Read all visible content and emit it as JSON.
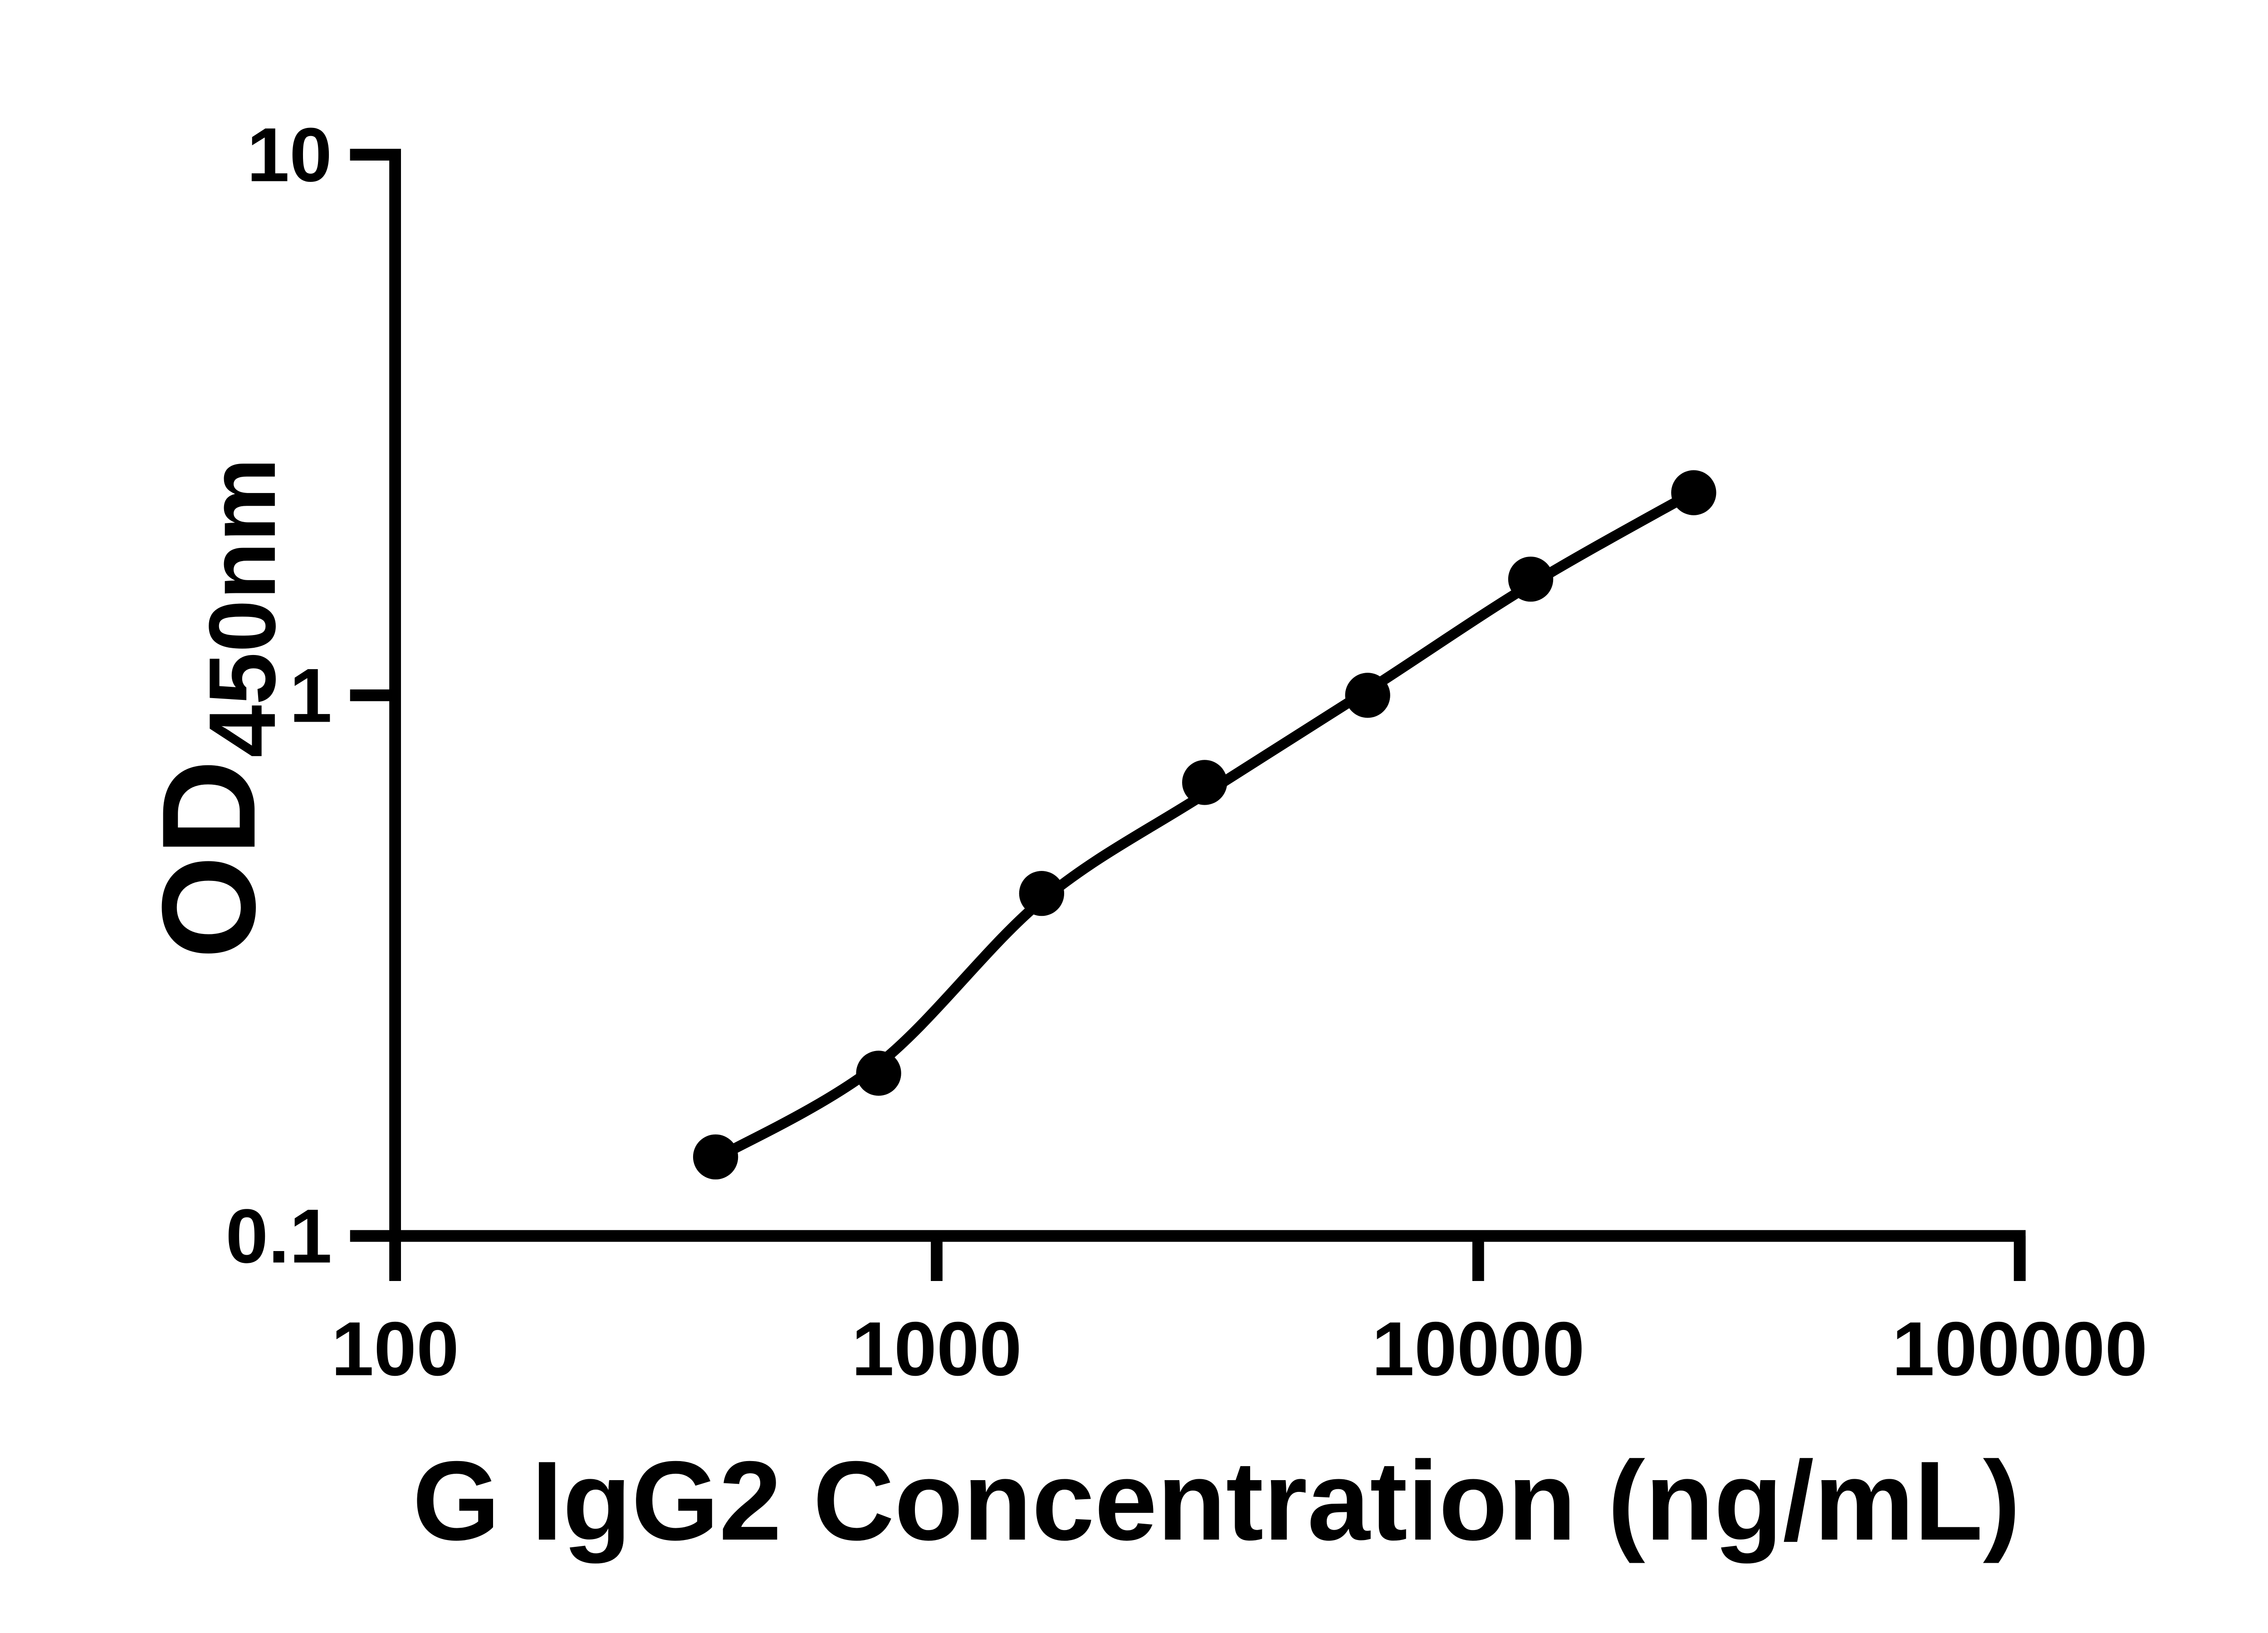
{
  "colors": {
    "background": "#ffffff",
    "foreground": "#000000"
  },
  "chart_data": {
    "type": "scatter",
    "title": "",
    "xlabel": "G IgG2 Concentration (ng/mL)",
    "ylabel_main": "OD",
    "ylabel_sub": "450nm",
    "x_scale": "log10",
    "y_scale": "log10",
    "xlim": [
      100,
      100000
    ],
    "ylim": [
      0.1,
      10
    ],
    "grid": false,
    "legend": null,
    "marker_color": "#000000",
    "line_color": "#000000",
    "x_ticks": [
      "100",
      "1000",
      "10000",
      "100000"
    ],
    "y_ticks": [
      "10",
      "1",
      "0.1"
    ],
    "points": [
      {
        "x": 390.6,
        "od": 0.14
      },
      {
        "x": 781.3,
        "od": 0.2
      },
      {
        "x": 1562.5,
        "od": 0.43
      },
      {
        "x": 3125,
        "od": 0.69
      },
      {
        "x": 6250,
        "od": 1.0
      },
      {
        "x": 12500,
        "od": 1.64
      },
      {
        "x": 25000,
        "od": 2.37
      }
    ],
    "fit_curve": [
      {
        "x": 390.6,
        "od": 0.139
      },
      {
        "x": 781.3,
        "od": 0.208
      },
      {
        "x": 1562.5,
        "od": 0.417
      },
      {
        "x": 3125,
        "od": 0.657
      },
      {
        "x": 6250,
        "od": 1.021
      },
      {
        "x": 12500,
        "od": 1.603
      },
      {
        "x": 25000,
        "od": 2.375
      }
    ]
  }
}
